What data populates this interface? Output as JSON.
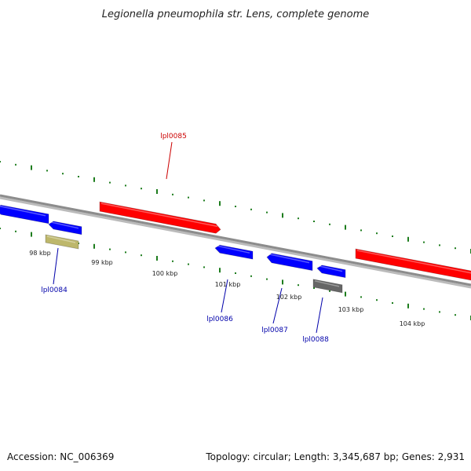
{
  "title": "Legionella pneumophila str. Lens, complete genome",
  "footer": {
    "accession": "Accession: NC_006369",
    "summary": "Topology: circular; Length: 3,345,687 bp; Genes: 2,931"
  },
  "colors": {
    "backbone": "#8c8c8c",
    "tick": "#1e7d1e",
    "forward_gene": "#ff0000",
    "reverse_gene": "#0000ff",
    "rna_gene": "#bdb76b",
    "other_gene": "#666666",
    "label_forward": "#cc0000",
    "label_reverse": "#0000aa"
  },
  "scale": {
    "ticks": [
      "98 kbp",
      "99 kbp",
      "100 kbp",
      "101 kbp",
      "102 kbp",
      "103 kbp",
      "104 kbp"
    ]
  },
  "genes": [
    {
      "name": "",
      "strand": "reverse",
      "type": "cds"
    },
    {
      "name": "",
      "strand": "reverse",
      "type": "cds"
    },
    {
      "name": "lpl0084",
      "strand": "reverse",
      "type": "rna"
    },
    {
      "name": "lpl0085",
      "strand": "forward",
      "type": "cds"
    },
    {
      "name": "lpl0086",
      "strand": "reverse",
      "type": "cds"
    },
    {
      "name": "lpl0087",
      "strand": "reverse",
      "type": "cds"
    },
    {
      "name": "",
      "strand": "reverse",
      "type": "cds"
    },
    {
      "name": "lpl0088",
      "strand": "reverse",
      "type": "other"
    },
    {
      "name": "",
      "strand": "forward",
      "type": "cds"
    }
  ]
}
